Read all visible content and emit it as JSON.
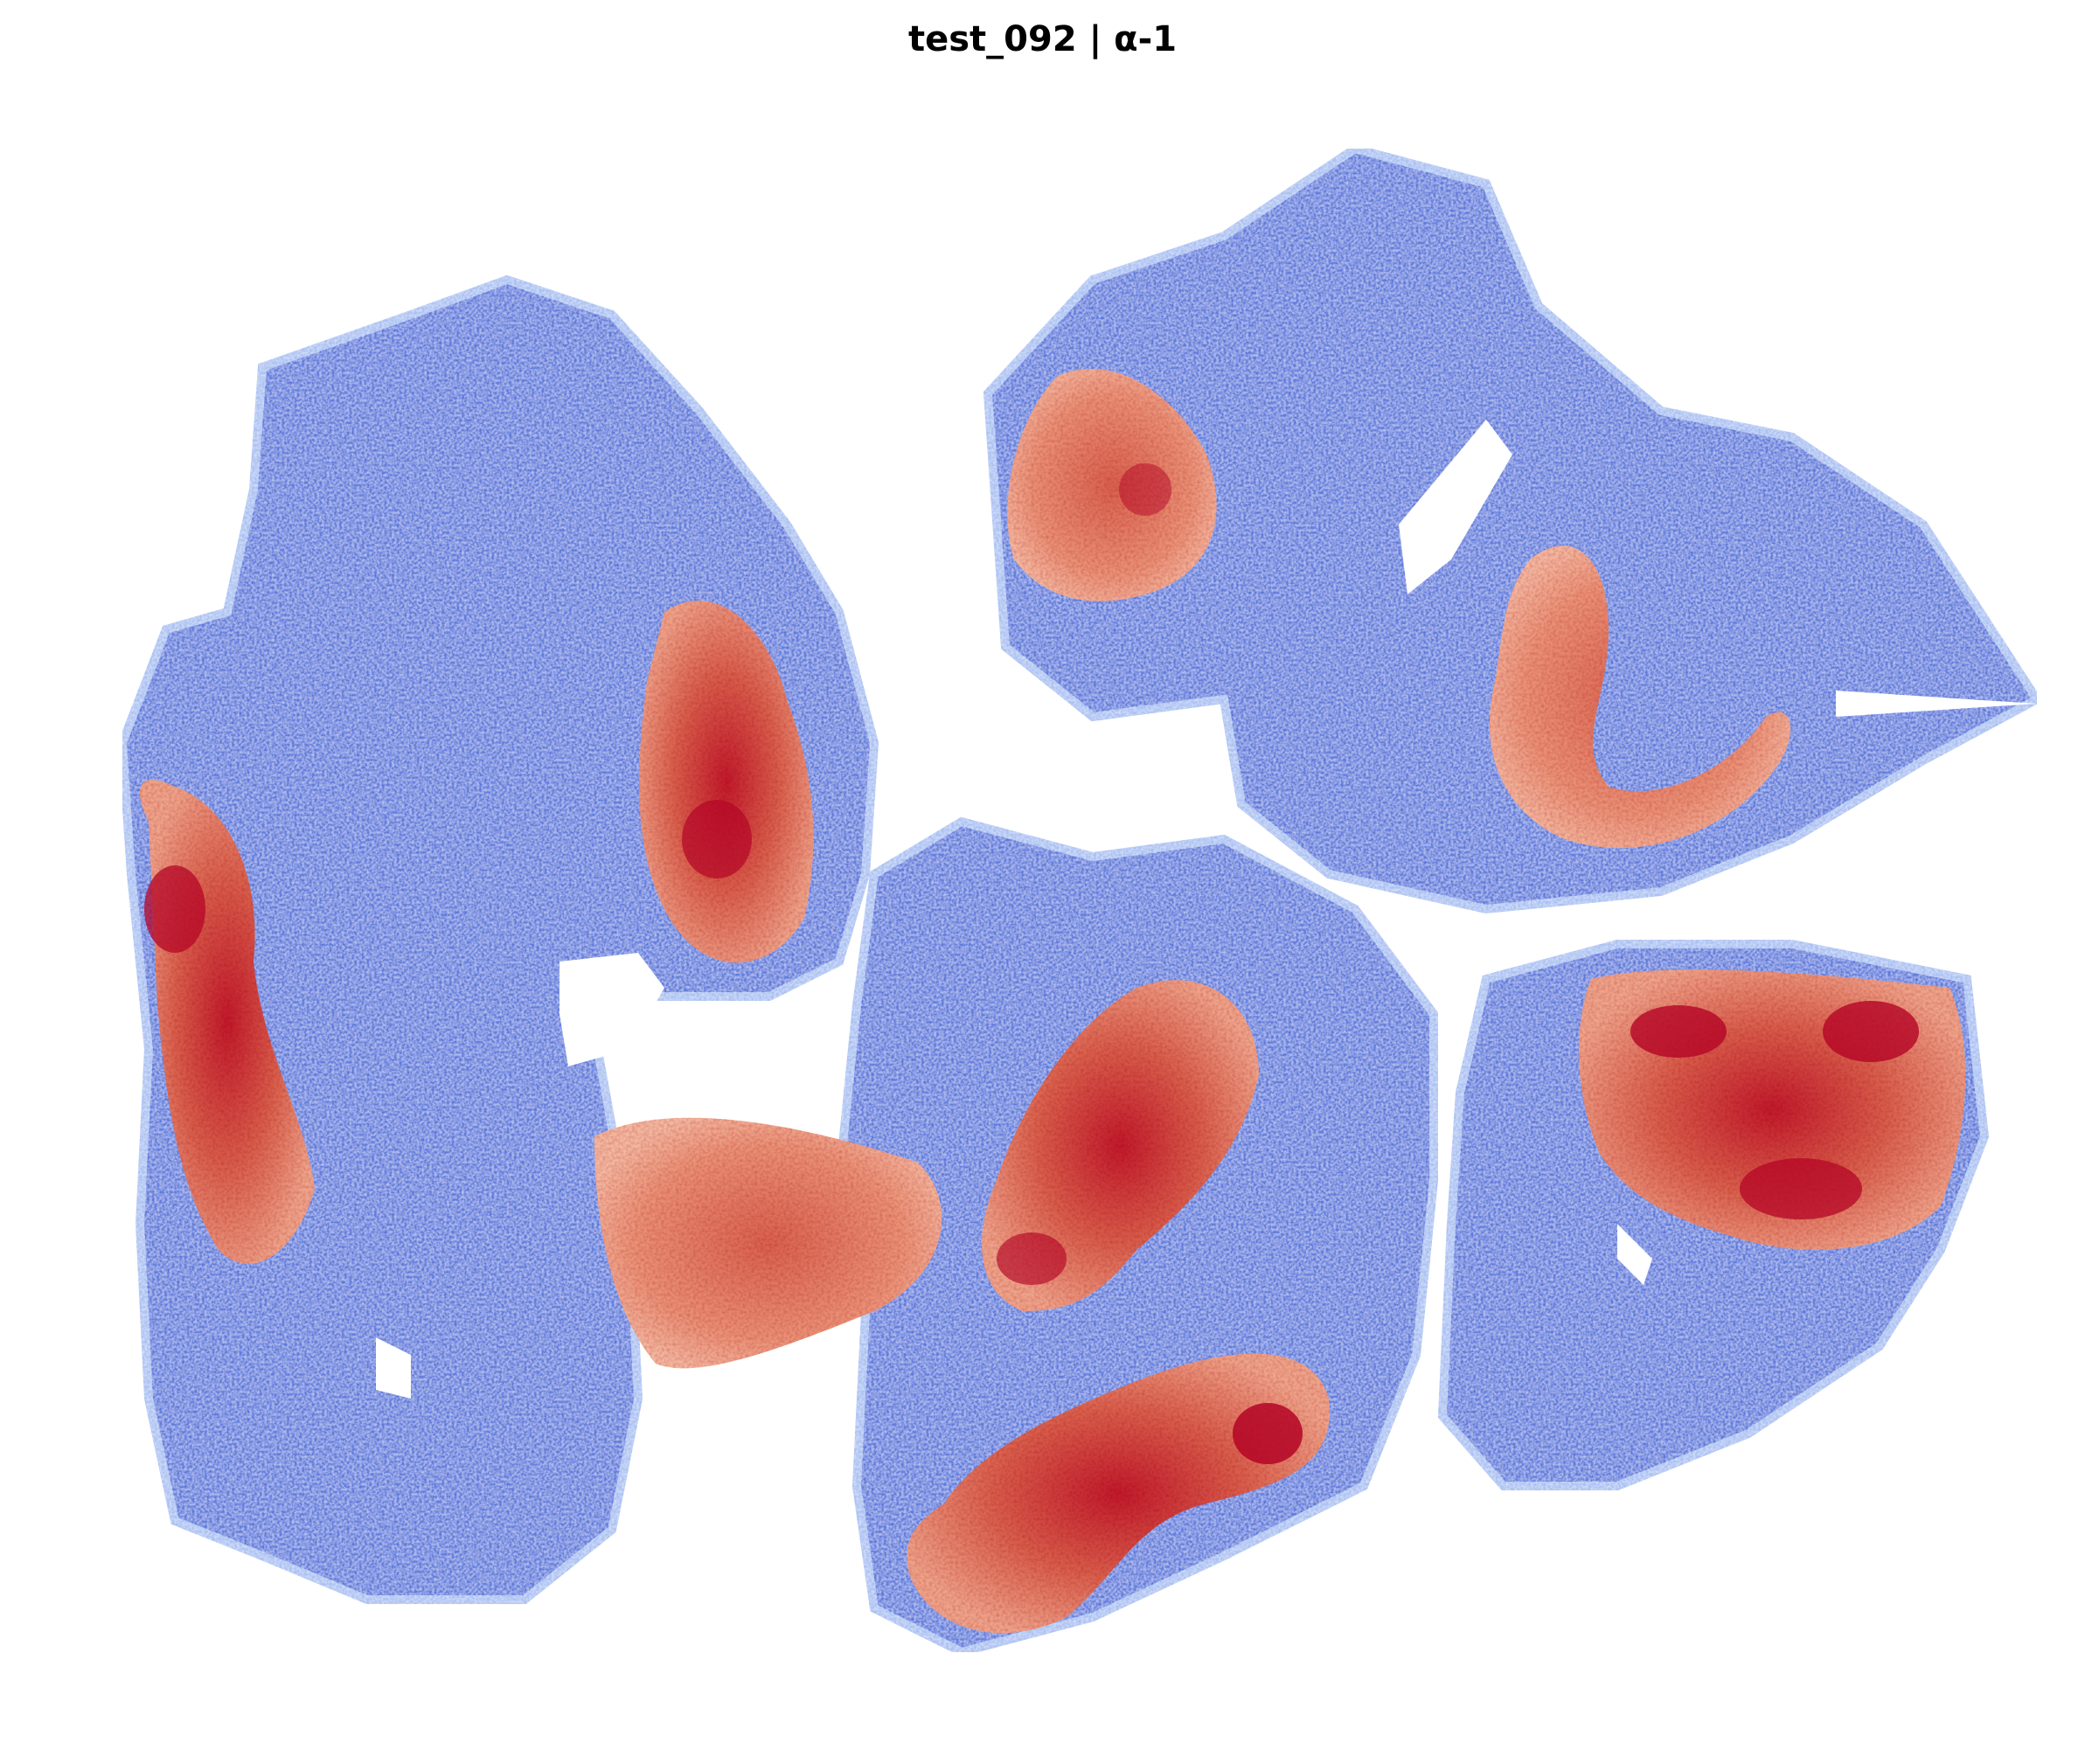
{
  "title": "test_092 | α-1",
  "colormap": {
    "name": "coolwarm",
    "low_color": "#3b4cc0",
    "mid_color": "#dddddd",
    "high_color": "#b40426"
  }
}
